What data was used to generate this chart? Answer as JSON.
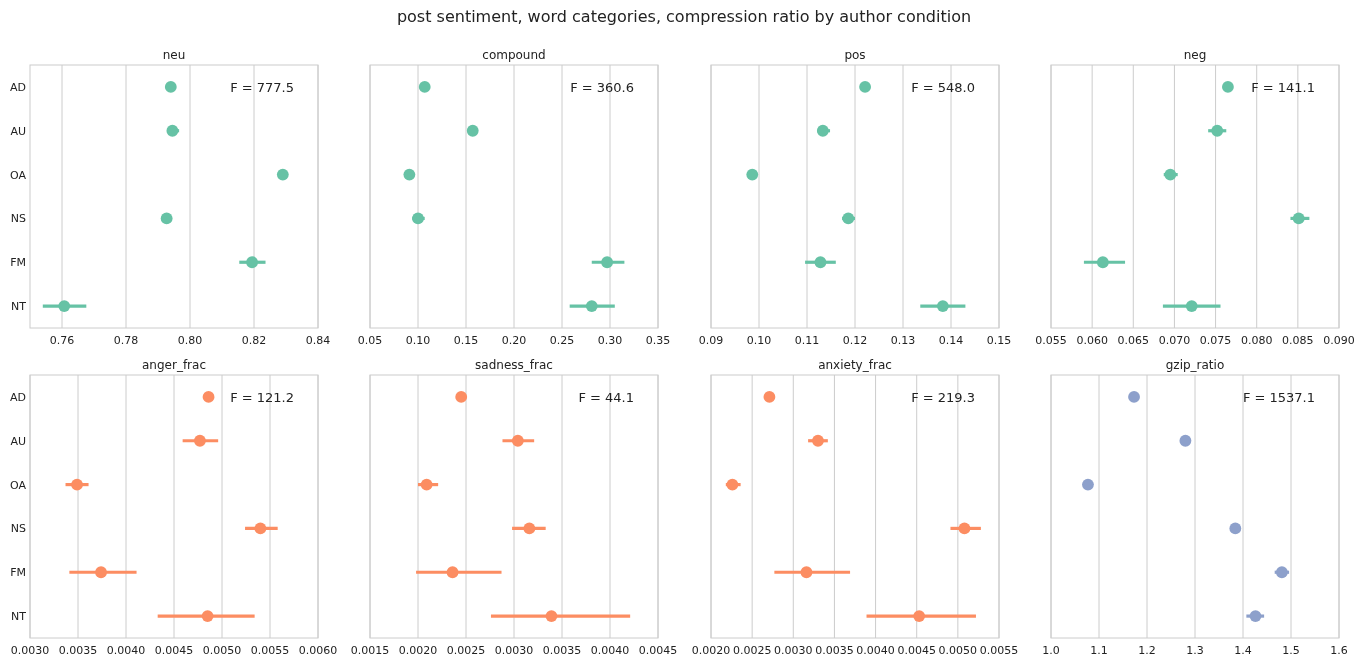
{
  "chart_data": [
    {
      "type": "other",
      "title": "post sentiment, word categories, compression ratio by author condition"
    },
    {
      "type": "scatter",
      "orientation": "horizontal",
      "title": "neu",
      "categories": [
        "AD",
        "AU",
        "OA",
        "NS",
        "FM",
        "NT"
      ],
      "color": "#66c2a5",
      "marker": "circle",
      "grid": "x",
      "annotations": [
        "F = 777.5"
      ],
      "xlim": [
        0.75,
        0.84
      ],
      "xticks": [
        0.76,
        0.78,
        {
          "value": 0.8,
          "label": "0.80"
        },
        0.82,
        0.84
      ],
      "values": [
        0.794,
        0.7945,
        0.829,
        0.7927,
        0.8194,
        0.7607
      ],
      "errors": [
        null,
        [
          0.7937,
          0.7966
        ],
        null,
        [
          0.7917,
          0.7944
        ],
        [
          0.8154,
          0.8236
        ],
        [
          0.754,
          0.7676
        ]
      ]
    },
    {
      "type": "scatter",
      "orientation": "horizontal",
      "title": "compound",
      "categories": [
        null,
        null,
        null,
        null,
        null,
        null
      ],
      "color": "#66c2a5",
      "marker": "circle",
      "grid": "x",
      "tick_labels": "x",
      "annotations": [
        "F = 360.6"
      ],
      "xlim": [
        0.05,
        0.35
      ],
      "xticks": [
        0.05,
        {
          "value": 0.1,
          "label": "0.10"
        },
        0.15,
        {
          "value": 0.2,
          "label": "0.20"
        },
        0.25,
        {
          "value": 0.3,
          "label": "0.30"
        },
        0.35
      ],
      "values": [
        0.107,
        0.157,
        0.091,
        0.1,
        0.297,
        0.281
      ],
      "errors": [
        null,
        null,
        null,
        [
          0.094,
          0.107
        ],
        [
          0.281,
          0.315
        ],
        [
          0.258,
          0.305
        ]
      ]
    },
    {
      "type": "scatter",
      "orientation": "horizontal",
      "title": "pos",
      "categories": [
        null,
        null,
        null,
        null,
        null,
        null
      ],
      "color": "#66c2a5",
      "marker": "circle",
      "grid": "x",
      "tick_labels": "x",
      "annotations": [
        "F = 548.0"
      ],
      "xlim": [
        0.09,
        0.15
      ],
      "xticks": [
        0.09,
        {
          "value": 0.1,
          "label": "0.10"
        },
        0.11,
        0.12,
        0.13,
        0.14,
        0.15
      ],
      "values": [
        0.1221,
        0.1133,
        0.0986,
        0.1186,
        0.1128,
        0.1383
      ],
      "errors": [
        null,
        [
          0.1122,
          0.1148
        ],
        null,
        [
          0.1173,
          0.12
        ],
        [
          0.1096,
          0.116
        ],
        [
          0.1336,
          0.143
        ]
      ]
    },
    {
      "type": "scatter",
      "orientation": "horizontal",
      "title": "neg",
      "categories": [
        null,
        null,
        null,
        null,
        null,
        null
      ],
      "color": "#66c2a5",
      "marker": "circle",
      "grid": "x",
      "tick_labels": "x",
      "annotations": [
        "F = 141.1"
      ],
      "xlim": [
        0.055,
        0.09
      ],
      "xticks": [
        0.055,
        {
          "value": 0.06,
          "label": "0.060"
        },
        0.065,
        {
          "value": 0.07,
          "label": "0.070"
        },
        0.075,
        {
          "value": 0.08,
          "label": "0.080"
        },
        0.085,
        {
          "value": 0.09,
          "label": "0.090"
        }
      ],
      "values": [
        0.0765,
        0.0752,
        0.0695,
        0.0851,
        0.0613,
        0.0721
      ],
      "errors": [
        null,
        [
          0.0741,
          0.0763
        ],
        [
          0.0687,
          0.0704
        ],
        [
          0.0841,
          0.0864
        ],
        [
          0.059,
          0.064
        ],
        [
          0.0686,
          0.0756
        ]
      ]
    },
    {
      "type": "scatter",
      "orientation": "horizontal",
      "title": "anger_frac",
      "categories": [
        "AD",
        "AU",
        "OA",
        "NS",
        "FM",
        "NT"
      ],
      "color": "#fc8d62",
      "marker": "circle",
      "grid": "x",
      "annotations": [
        "F = 121.2"
      ],
      "xlim": [
        0.003,
        0.006
      ],
      "xticks": [
        {
          "value": 0.003,
          "label": "0.0030"
        },
        0.0035,
        {
          "value": 0.004,
          "label": "0.0040"
        },
        0.0045,
        {
          "value": 0.005,
          "label": "0.0050"
        },
        0.0055,
        {
          "value": 0.006,
          "label": "0.0060"
        }
      ],
      "values": [
        0.00486,
        0.00477,
        0.00349,
        0.0054,
        0.00374,
        0.00485
      ],
      "errors": [
        null,
        [
          0.00459,
          0.00496
        ],
        [
          0.00337,
          0.00361
        ],
        [
          0.00524,
          0.00558
        ],
        [
          0.00341,
          0.00411
        ],
        [
          0.00433,
          0.00534
        ]
      ]
    },
    {
      "type": "scatter",
      "orientation": "horizontal",
      "title": "sadness_frac",
      "categories": [
        null,
        null,
        null,
        null,
        null,
        null
      ],
      "color": "#fc8d62",
      "marker": "circle",
      "grid": "x",
      "tick_labels": "x",
      "annotations": [
        "F = 44.1"
      ],
      "xlim": [
        0.0015,
        0.0045
      ],
      "xticks": [
        0.0015,
        {
          "value": 0.002,
          "label": "0.0020"
        },
        0.0025,
        {
          "value": 0.003,
          "label": "0.0030"
        },
        0.0035,
        {
          "value": 0.004,
          "label": "0.0040"
        },
        0.0045
      ],
      "values": [
        0.00245,
        0.00304,
        0.00209,
        0.00316,
        0.00236,
        0.00339
      ],
      "errors": [
        null,
        [
          0.00288,
          0.00321
        ],
        [
          0.002,
          0.00221
        ],
        [
          0.00298,
          0.00333
        ],
        [
          0.00198,
          0.00287
        ],
        [
          0.00276,
          0.00421
        ]
      ]
    },
    {
      "type": "scatter",
      "orientation": "horizontal",
      "title": "anxiety_frac",
      "categories": [
        null,
        null,
        null,
        null,
        null,
        null
      ],
      "color": "#fc8d62",
      "marker": "circle",
      "grid": "x",
      "tick_labels": "x",
      "annotations": [
        "F = 219.3"
      ],
      "xlim": [
        0.002,
        0.0055
      ],
      "xticks": [
        {
          "value": 0.002,
          "label": "0.0020"
        },
        0.0025,
        {
          "value": 0.003,
          "label": "0.0030"
        },
        0.0035,
        {
          "value": 0.004,
          "label": "0.0040"
        },
        0.0045,
        {
          "value": 0.005,
          "label": "0.0050"
        },
        0.0055
      ],
      "values": [
        0.00271,
        0.0033,
        0.00226,
        0.00508,
        0.00316,
        0.00453
      ],
      "errors": [
        null,
        [
          0.00318,
          0.00342
        ],
        [
          0.00218,
          0.00236
        ],
        [
          0.00491,
          0.00528
        ],
        [
          0.00277,
          0.00369
        ],
        [
          0.00389,
          0.00522
        ]
      ]
    },
    {
      "type": "scatter",
      "orientation": "horizontal",
      "title": "gzip_ratio",
      "categories": [
        null,
        null,
        null,
        null,
        null,
        null
      ],
      "color": "#8da0cb",
      "marker": "circle",
      "grid": "x",
      "tick_labels": "x",
      "annotations": [
        "F = 1537.1"
      ],
      "xlim": [
        1.0,
        1.6
      ],
      "xticks": [
        {
          "value": 1.0,
          "label": "1.0"
        },
        1.1,
        1.2,
        1.3,
        1.4,
        1.5,
        1.6
      ],
      "values": [
        1.173,
        1.28,
        1.077,
        1.384,
        1.481,
        1.426
      ],
      "errors": [
        null,
        null,
        null,
        null,
        [
          1.466,
          1.496
        ],
        [
          1.407,
          1.444
        ]
      ]
    }
  ]
}
